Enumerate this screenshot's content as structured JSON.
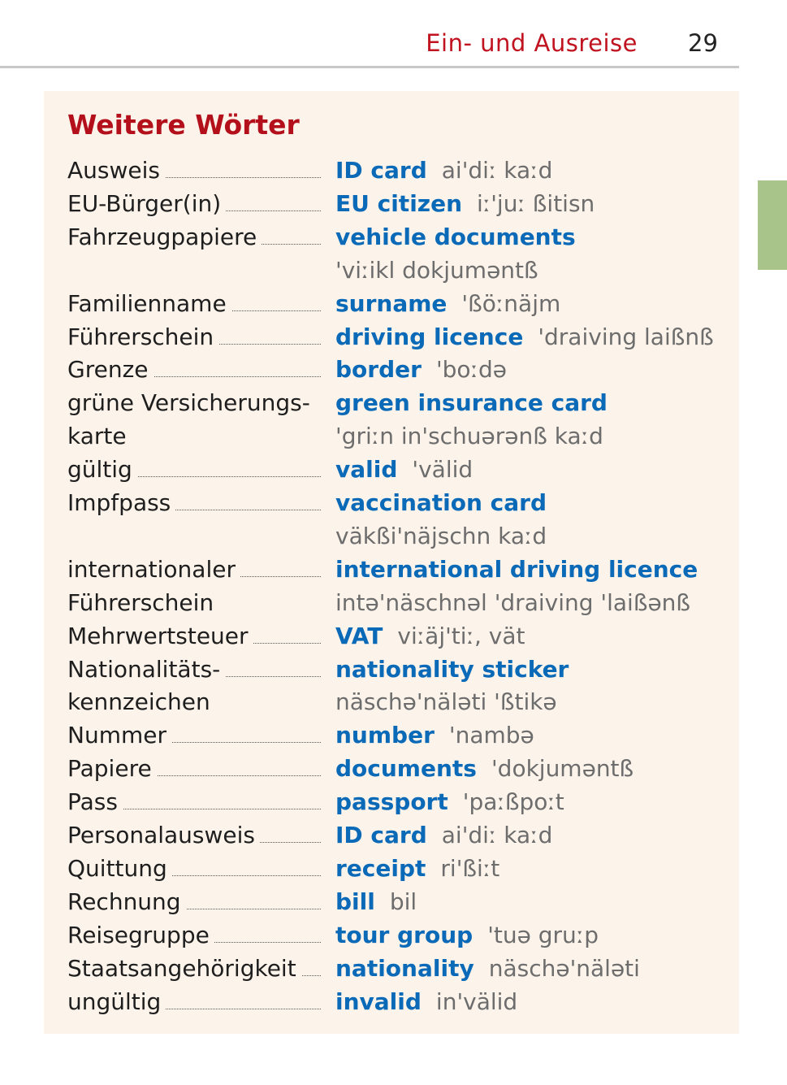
{
  "header": {
    "section_title": "Ein- und Ausreise",
    "page_number": "29"
  },
  "colors": {
    "header_red": "#c0131f",
    "term_blue": "#0a6ab8",
    "box_bg": "#fcf3ea",
    "tab_green": "#a8c48a"
  },
  "box": {
    "title": "Weitere Wörter"
  },
  "lines": [
    {
      "de": "Ausweis",
      "leader": true,
      "term": "ID card",
      "phon": "ai'diː kaːd"
    },
    {
      "de": "EU-Bürger(in)",
      "leader": true,
      "term": "EU citizen",
      "phon": "iː'juː ßitisn"
    },
    {
      "de": "Fahrzeugpapiere",
      "leader": true,
      "term": "vehicle documents",
      "phon": ""
    },
    {
      "de": "",
      "leader": false,
      "term": "",
      "phon": "'viːikl dokjuməntß"
    },
    {
      "de": "Familienname",
      "leader": true,
      "term": "surname",
      "phon": "'ßöːnäjm"
    },
    {
      "de": "Führerschein",
      "leader": true,
      "term": "driving licence",
      "phon": "'draiving laißnß"
    },
    {
      "de": "Grenze",
      "leader": true,
      "term": "border",
      "phon": "'boːdə"
    },
    {
      "de": "grüne Versicherungs-",
      "leader": false,
      "term": "green insurance card",
      "phon": ""
    },
    {
      "de": "karte",
      "leader": false,
      "term": "",
      "phon": "'griːn in'schuərənß kaːd"
    },
    {
      "de": "gültig",
      "leader": true,
      "term": "valid",
      "phon": "'välid"
    },
    {
      "de": "Impfpass",
      "leader": true,
      "term": "vaccination card",
      "phon": ""
    },
    {
      "de": "",
      "leader": false,
      "term": "",
      "phon": "väkßi'näjschn kaːd"
    },
    {
      "de": "internationaler",
      "leader": true,
      "term": "international driving licence",
      "phon": ""
    },
    {
      "de": "Führerschein",
      "leader": false,
      "term": "",
      "phon": "intə'näschnəl 'draiving 'laißənß"
    },
    {
      "de": "Mehrwertsteuer",
      "leader": true,
      "term": "VAT",
      "phon": "viːäj'tiː, vät"
    },
    {
      "de": "Nationalitäts-",
      "leader": true,
      "term": "nationality sticker",
      "phon": ""
    },
    {
      "de": "kennzeichen",
      "leader": false,
      "term": "",
      "phon": "näschə'näləti 'ßtikə"
    },
    {
      "de": "Nummer",
      "leader": true,
      "term": "number",
      "phon": "'nambə"
    },
    {
      "de": "Papiere",
      "leader": true,
      "term": "documents",
      "phon": "'dokjuməntß"
    },
    {
      "de": "Pass",
      "leader": true,
      "term": "passport",
      "phon": "'paːßpoːt"
    },
    {
      "de": "Personalausweis",
      "leader": true,
      "term": "ID card",
      "phon": "ai'diː kaːd"
    },
    {
      "de": "Quittung",
      "leader": true,
      "term": "receipt",
      "phon": "ri'ßiːt"
    },
    {
      "de": "Rechnung",
      "leader": true,
      "term": "bill",
      "phon": "bil"
    },
    {
      "de": "Reisegruppe",
      "leader": true,
      "term": "tour group",
      "phon": "'tuə gruːp"
    },
    {
      "de": "Staatsangehörigkeit",
      "leader": true,
      "term": "nationality",
      "phon": "näschə'näləti"
    },
    {
      "de": "ungültig",
      "leader": true,
      "term": "invalid",
      "phon": "in'välid"
    }
  ]
}
